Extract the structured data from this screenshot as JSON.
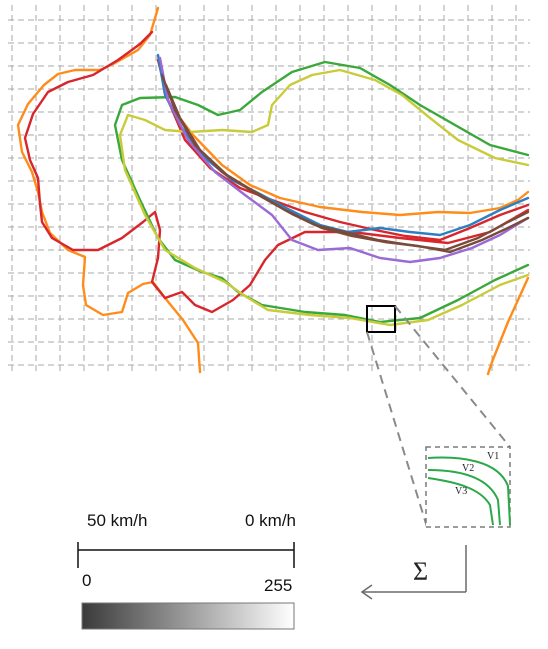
{
  "scale": {
    "speed_high_label": "50 km/h",
    "speed_low_label": "0 km/h",
    "value_min_label": "0",
    "value_max_label": "255",
    "gradient_start_color": "#3a3a3a",
    "gradient_end_color": "#ffffff"
  },
  "inset": {
    "labels": [
      "V1",
      "V2",
      "V3"
    ],
    "curve_color": "#2aa84a"
  },
  "sum_symbol": "Σ",
  "trajectory_colors": {
    "orange": "#ff8c1a",
    "red": "#d7262c",
    "green": "#3aa83a",
    "yellow_green": "#c8cc3a",
    "blue": "#2e7fc2",
    "purple": "#9a6ad6",
    "brown": "#7a4a3a"
  }
}
